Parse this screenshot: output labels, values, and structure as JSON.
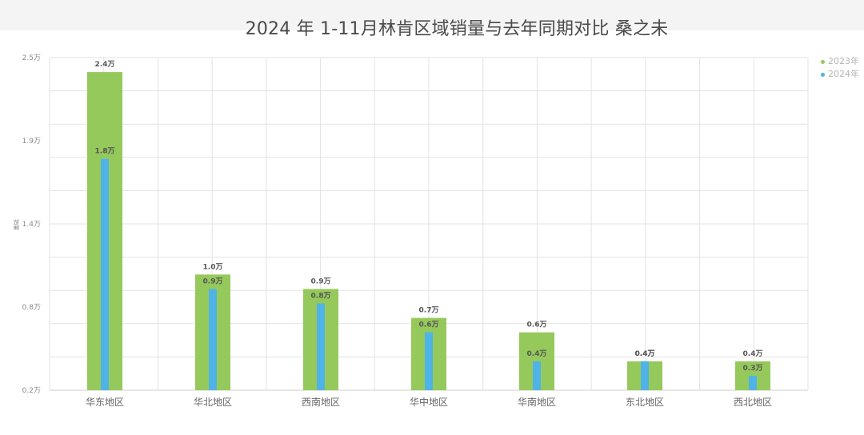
{
  "chart_data": {
    "type": "bar",
    "title": "2024 年 1-11月林肯区域销量与去年同期对比 桑之未",
    "ylabel": "",
    "xlabel": "",
    "categories": [
      "华东地区",
      "华北地区",
      "西南地区",
      "华中地区",
      "华南地区",
      "东北地区",
      "西北地区"
    ],
    "series": [
      {
        "name": "2023年",
        "values": [
          2.4,
          1.0,
          0.9,
          0.7,
          0.6,
          0.4,
          0.4
        ],
        "value_labels": [
          "2.4万",
          "1.0万",
          "0.9万",
          "0.7万",
          "0.6万",
          "0.4万",
          "0.4万"
        ],
        "color": "#95c95c"
      },
      {
        "name": "2024年",
        "values": [
          1.8,
          0.9,
          0.8,
          0.6,
          0.4,
          0.4,
          0.3
        ],
        "value_labels": [
          "1.8万",
          "0.9万",
          "0.8万",
          "0.6万",
          "0.4万",
          "0.4万",
          "0.3万"
        ],
        "color": "#4fb3e8"
      }
    ],
    "ytick_labels": [
      "2.5万",
      "1.9万",
      "1.4万",
      "0.8万",
      "0.2万"
    ],
    "y_axis_unit_label": "销量",
    "ylim": [
      0.2,
      2.5
    ],
    "grid": true,
    "legend_position": "top-right"
  }
}
